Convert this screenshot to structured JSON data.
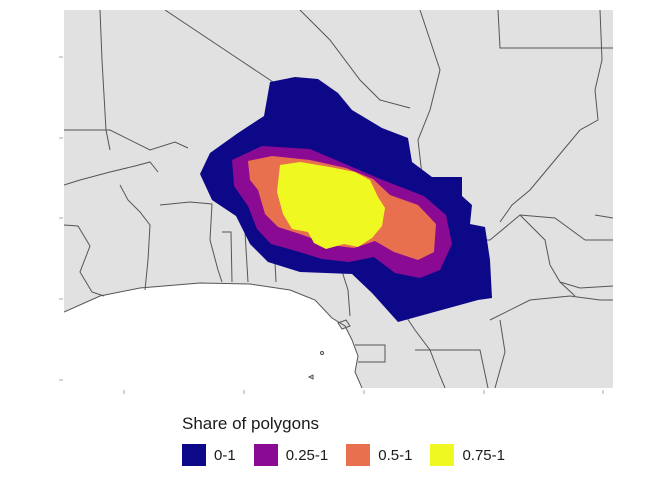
{
  "legend": {
    "title": "Share of polygons",
    "items": [
      {
        "label": "0-1",
        "color": "#0d0887"
      },
      {
        "label": "0.25-1",
        "color": "#8b0a93"
      },
      {
        "label": "0.5-1",
        "color": "#e8704f"
      },
      {
        "label": "0.75-1",
        "color": "#eff821"
      }
    ]
  },
  "colors": {
    "land": "#e1e1e1",
    "sea": "#ffffff",
    "border": "#555555"
  }
}
